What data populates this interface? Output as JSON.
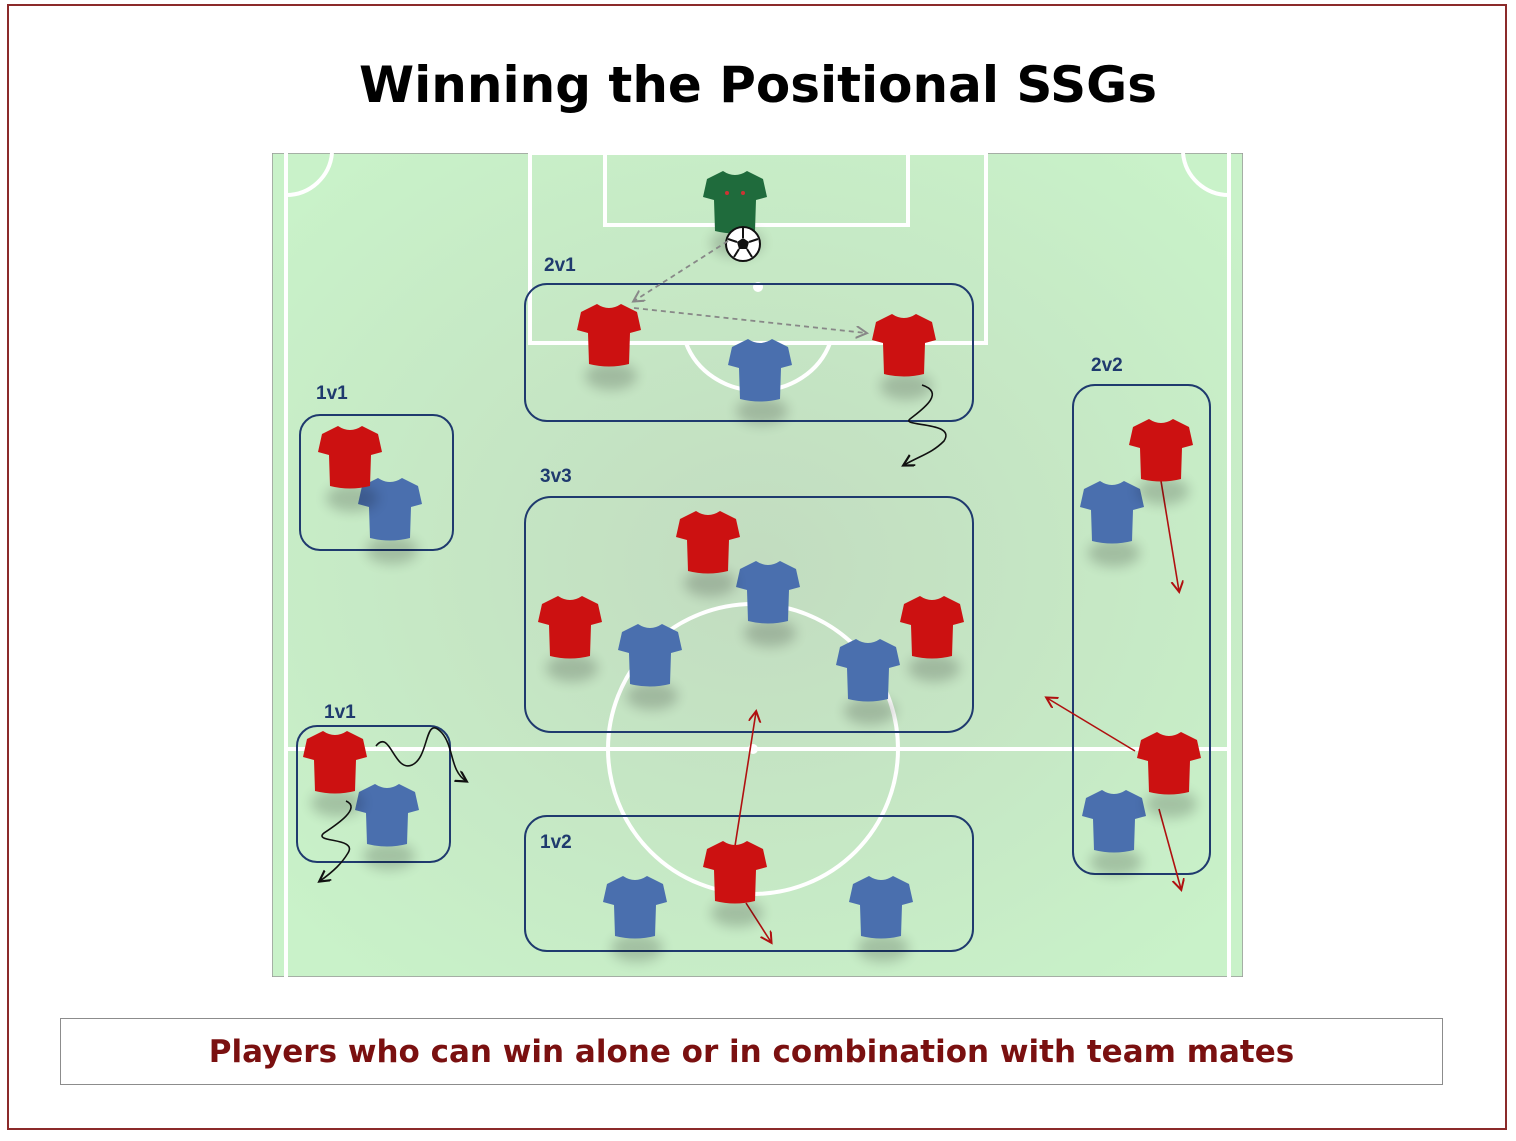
{
  "title": "Winning the Positional SSGs",
  "caption": "Players who can win alone or in combination with team mates",
  "zones": [
    {
      "id": "2v1-top",
      "label": "2v1"
    },
    {
      "id": "1v1-left-upper",
      "label": "1v1"
    },
    {
      "id": "3v3-center",
      "label": "3v3"
    },
    {
      "id": "2v2-right",
      "label": "2v2"
    },
    {
      "id": "1v1-left-lower",
      "label": "1v1"
    },
    {
      "id": "1v2-bottom",
      "label": "1v2"
    }
  ],
  "colors": {
    "attacker": "#cc1111",
    "defender": "#4a6fae",
    "goalkeeper": "#1f6b3c",
    "zone_outline": "#1f3a6e",
    "zone_label": "#1f3a6e",
    "pitch": "#c8ecc8",
    "frame": "#8b2a2a",
    "caption_text": "#7a1010",
    "run_arrow": "#b01010",
    "pass_arrow": "#888888"
  },
  "icons": [
    "red-jersey-icon",
    "blue-jersey-icon",
    "green-goalkeeper-jersey-icon",
    "soccer-ball-icon"
  ]
}
